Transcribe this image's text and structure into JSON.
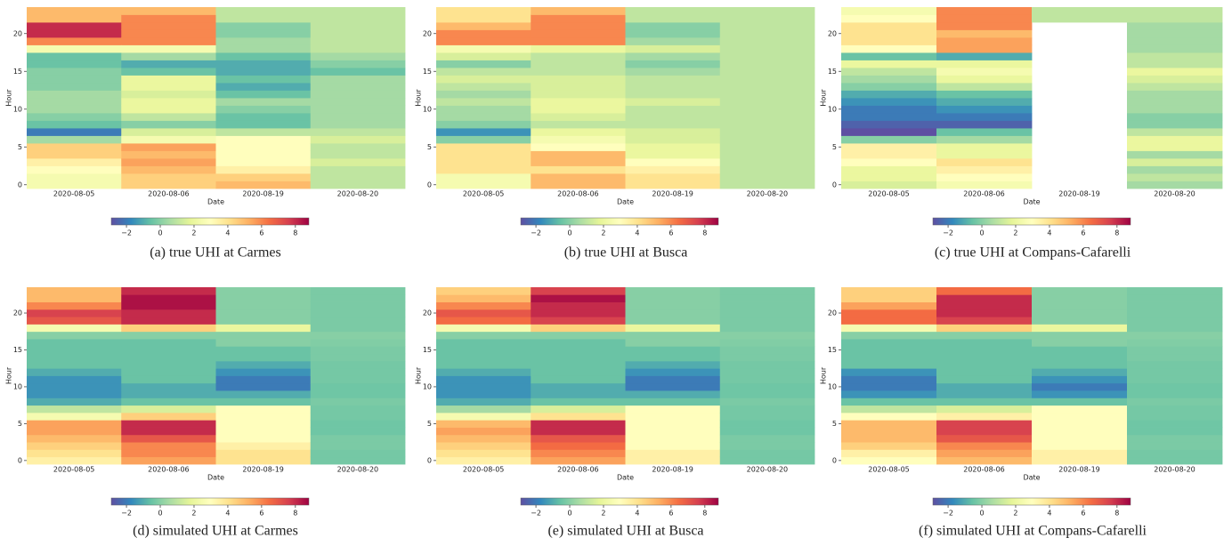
{
  "chart_data": [
    {
      "type": "heatmap",
      "title": "(a) true UHI at Carmes",
      "x_label": "Date",
      "y_label": "Hour",
      "colormap": "Spectral_r",
      "categories": [
        "2020-08-05",
        "2020-08-06",
        "2020-08-19",
        "2020-08-20"
      ],
      "y": [
        0,
        1,
        2,
        3,
        4,
        5,
        6,
        7,
        8,
        9,
        10,
        11,
        12,
        13,
        14,
        15,
        16,
        17,
        18,
        19,
        20,
        21,
        22,
        23
      ],
      "ylim": [
        -0.5,
        23.5
      ],
      "yticks": [
        0,
        5,
        10,
        15,
        20
      ],
      "clim": [
        -2.9,
        8.8
      ],
      "cticks": [
        {
          "value": -2,
          "label": "−2"
        },
        0,
        2,
        4,
        6,
        8
      ],
      "values": [
        [
          2.5,
          2.5,
          3,
          3.5,
          4.5,
          4.5,
          0.5,
          -2,
          -0.5,
          0,
          0.5,
          0.5,
          0.5,
          0,
          0,
          0,
          -0.5,
          -0.5,
          2.5,
          6,
          8,
          8,
          5,
          5
        ],
        [
          4.5,
          4.5,
          5,
          5.5,
          5,
          5.5,
          2.5,
          1.5,
          0,
          1,
          2,
          2,
          1.5,
          2,
          2,
          -0.5,
          -1,
          0.5,
          2.5,
          6,
          6,
          6,
          6,
          5
        ],
        [
          5,
          4.5,
          3.5,
          3,
          3,
          3,
          3,
          1,
          -0.5,
          -0.5,
          0,
          0.5,
          -0.5,
          -1,
          -0.5,
          -1,
          -1,
          -0.5,
          0.5,
          0.5,
          0,
          0,
          1,
          1
        ],
        [
          1,
          1,
          1,
          1.5,
          1,
          1,
          1.5,
          1,
          0.5,
          0.5,
          0.5,
          0.5,
          0.5,
          0.5,
          0.5,
          -0.5,
          0,
          0.5,
          1,
          1,
          1,
          1,
          1,
          1
        ]
      ]
    },
    {
      "type": "heatmap",
      "title": "(b) true UHI at Busca",
      "x_label": "Date",
      "y_label": "Hour",
      "colormap": "Spectral_r",
      "categories": [
        "2020-08-05",
        "2020-08-06",
        "2020-08-19",
        "2020-08-20"
      ],
      "y": [
        0,
        1,
        2,
        3,
        4,
        5,
        6,
        7,
        8,
        9,
        10,
        11,
        12,
        13,
        14,
        15,
        16,
        17,
        18,
        19,
        20,
        21,
        22,
        23
      ],
      "ylim": [
        -0.5,
        23.5
      ],
      "yticks": [
        0,
        5,
        10,
        15,
        20
      ],
      "clim": [
        -2.9,
        8.8
      ],
      "cticks": [
        {
          "value": -2,
          "label": "−2"
        },
        0,
        2,
        4,
        6,
        8
      ],
      "values": [
        [
          2.5,
          2.5,
          4,
          4,
          4,
          4,
          0,
          -1.5,
          0,
          0.5,
          0.5,
          1,
          0.5,
          1,
          1.5,
          1,
          0,
          1.5,
          2.5,
          6,
          6,
          5,
          4,
          4
        ],
        [
          5,
          5,
          4,
          5,
          5,
          3,
          2.5,
          2,
          1,
          1.5,
          2,
          2,
          1.5,
          1.5,
          1.5,
          1,
          1,
          1,
          2,
          6,
          6,
          6,
          6,
          5
        ],
        [
          4,
          4,
          3.5,
          3,
          2,
          2,
          1.5,
          1.5,
          1,
          1,
          1,
          1.5,
          1,
          1,
          1,
          0.5,
          0,
          0.5,
          1.5,
          0.5,
          0,
          0,
          1,
          1
        ],
        [
          1,
          1,
          1,
          1,
          1,
          1,
          1,
          1,
          1,
          1,
          1,
          1,
          1,
          1,
          1,
          1,
          1,
          1,
          1,
          1,
          1,
          1,
          1,
          1
        ]
      ]
    },
    {
      "type": "heatmap",
      "title": "(c) true UHI at Compans-Cafarelli",
      "x_label": "Date",
      "y_label": "Hour",
      "colormap": "Spectral_r",
      "categories": [
        "2020-08-05",
        "2020-08-06",
        "2020-08-19",
        "2020-08-20"
      ],
      "y": [
        0,
        1,
        2,
        3,
        4,
        5,
        6,
        7,
        8,
        9,
        10,
        11,
        12,
        13,
        14,
        15,
        16,
        17,
        18,
        19,
        20,
        21,
        22,
        23
      ],
      "ylim": [
        -0.5,
        23.5
      ],
      "yticks": [
        0,
        5,
        10,
        15,
        20
      ],
      "clim": [
        -2.9,
        8.8
      ],
      "cticks": [
        {
          "value": -2,
          "label": "−2"
        },
        0,
        2,
        4,
        6,
        8
      ],
      "values": [
        [
          1.5,
          2,
          2,
          3,
          3.5,
          3.5,
          0,
          -3,
          -2.5,
          -2,
          -2,
          -1.5,
          -1,
          0,
          0.5,
          1,
          2,
          -0.5,
          3,
          4,
          4,
          4,
          3,
          2.5
        ],
        [
          2.5,
          3,
          3.5,
          4,
          2,
          2,
          0.5,
          -0.5,
          -2.5,
          -2,
          -1.5,
          -1,
          -0.5,
          1,
          2,
          2.5,
          2,
          -1,
          5.5,
          5.5,
          5,
          6,
          6,
          6
        ],
        [
          null,
          null,
          null,
          null,
          null,
          null,
          null,
          null,
          null,
          null,
          null,
          null,
          null,
          null,
          null,
          null,
          null,
          null,
          null,
          null,
          null,
          null,
          1,
          1
        ],
        [
          0.5,
          1,
          0.5,
          1.5,
          0.5,
          2,
          2,
          1,
          0,
          0,
          0.5,
          0.5,
          0.5,
          1,
          1.5,
          2,
          1,
          1,
          0.5,
          0.5,
          0.5,
          0.5,
          1,
          1
        ]
      ]
    },
    {
      "type": "heatmap",
      "title": "(d) simulated UHI at Carmes",
      "x_label": "Date",
      "y_label": "Hour",
      "colormap": "Spectral_r",
      "categories": [
        "2020-08-05",
        "2020-08-06",
        "2020-08-19",
        "2020-08-20"
      ],
      "y": [
        0,
        1,
        2,
        3,
        4,
        5,
        6,
        7,
        8,
        9,
        10,
        11,
        12,
        13,
        14,
        15,
        16,
        17,
        18,
        19,
        20,
        21,
        22,
        23
      ],
      "ylim": [
        -0.5,
        23.5
      ],
      "yticks": [
        0,
        5,
        10,
        15,
        20
      ],
      "clim": [
        -2.9,
        8.8
      ],
      "cticks": [
        {
          "value": -2,
          "label": "−2"
        },
        0,
        2,
        4,
        6,
        8
      ],
      "values": [
        [
          3.5,
          4,
          4.5,
          5,
          5.5,
          5.5,
          2.5,
          1,
          -1,
          -1.5,
          -1.5,
          -1.5,
          -1,
          -0.5,
          -0.5,
          -0.5,
          -0.5,
          0,
          2.5,
          7,
          7.5,
          6,
          5,
          5
        ],
        [
          5.5,
          6,
          6,
          7,
          8,
          8,
          4.5,
          1.5,
          -0.5,
          -1,
          -1,
          -0.5,
          -0.5,
          -0.5,
          -0.5,
          -0.5,
          -0.5,
          0,
          4.5,
          8,
          8,
          8.5,
          8.5,
          8
        ],
        [
          4,
          4,
          3.5,
          3,
          3,
          3,
          3,
          3,
          -0.5,
          -1,
          -2,
          -2,
          -1.5,
          -1,
          -0.5,
          -0.5,
          0,
          0,
          2,
          0,
          0,
          0,
          0,
          0
        ],
        [
          -0.3,
          -0.3,
          -0.2,
          -0.2,
          -0.4,
          -0.4,
          -0.3,
          -0.3,
          -0.2,
          -0.4,
          -0.4,
          -0.3,
          -0.3,
          -0.3,
          -0.2,
          -0.2,
          -0.1,
          0,
          -0.2,
          -0.2,
          -0.2,
          -0.2,
          -0.2,
          -0.2
        ]
      ]
    },
    {
      "type": "heatmap",
      "title": "(e) simulated UHI at Busca",
      "x_label": "Date",
      "y_label": "Hour",
      "colormap": "Spectral_r",
      "categories": [
        "2020-08-05",
        "2020-08-06",
        "2020-08-19",
        "2020-08-20"
      ],
      "y": [
        0,
        1,
        2,
        3,
        4,
        5,
        6,
        7,
        8,
        9,
        10,
        11,
        12,
        13,
        14,
        15,
        16,
        17,
        18,
        19,
        20,
        21,
        22,
        23
      ],
      "ylim": [
        -0.5,
        23.5
      ],
      "yticks": [
        0,
        5,
        10,
        15,
        20
      ],
      "clim": [
        -2.9,
        8.8
      ],
      "cticks": [
        {
          "value": -2,
          "label": "−2"
        },
        0,
        2,
        4,
        6,
        8
      ],
      "values": [
        [
          3.5,
          4,
          4.5,
          5,
          5.5,
          5,
          2.5,
          0.5,
          -1,
          -1.5,
          -1.5,
          -1.5,
          -1,
          -0.5,
          -0.5,
          -0.5,
          -0.5,
          0,
          2.5,
          6.5,
          7,
          6,
          5,
          4.5
        ],
        [
          5.5,
          6,
          6.5,
          7,
          8,
          8,
          4,
          1.5,
          -0.5,
          -1,
          -1,
          -0.5,
          -0.5,
          -0.5,
          -0.5,
          -0.5,
          -0.5,
          0,
          4.5,
          7.5,
          8,
          8,
          8.5,
          7.5
        ],
        [
          3.5,
          3.5,
          3,
          3,
          3,
          3,
          3,
          3,
          -0.5,
          -1,
          -2,
          -2,
          -1.5,
          -1,
          -0.5,
          -0.5,
          0,
          0,
          2,
          0,
          0,
          0,
          0,
          0
        ],
        [
          -0.3,
          -0.3,
          -0.2,
          -0.2,
          -0.4,
          -0.4,
          -0.3,
          -0.3,
          -0.2,
          -0.4,
          -0.4,
          -0.3,
          -0.3,
          -0.3,
          -0.2,
          -0.2,
          -0.1,
          0,
          -0.2,
          -0.2,
          -0.2,
          -0.2,
          -0.2,
          -0.2
        ]
      ]
    },
    {
      "type": "heatmap",
      "title": "(f) simulated UHI at Compans-Cafarelli",
      "x_label": "Date",
      "y_label": "Hour",
      "colormap": "Spectral_r",
      "categories": [
        "2020-08-05",
        "2020-08-06",
        "2020-08-19",
        "2020-08-20"
      ],
      "y": [
        0,
        1,
        2,
        3,
        4,
        5,
        6,
        7,
        8,
        9,
        10,
        11,
        12,
        13,
        14,
        15,
        16,
        17,
        18,
        19,
        20,
        21,
        22,
        23
      ],
      "ylim": [
        -0.5,
        23.5
      ],
      "yticks": [
        0,
        5,
        10,
        15,
        20
      ],
      "clim": [
        -2.9,
        8.8
      ],
      "cticks": [
        {
          "value": -2,
          "label": "−2"
        },
        0,
        2,
        4,
        6,
        8
      ],
      "values": [
        [
          3,
          3.5,
          4.5,
          5,
          5,
          5,
          3,
          1,
          -0.5,
          -1.5,
          -2,
          -2,
          -1.5,
          -0.5,
          -0.5,
          -0.5,
          -0.5,
          0,
          2.5,
          6.5,
          6.5,
          5.5,
          4.5,
          4.5
        ],
        [
          5,
          5.5,
          6,
          7,
          7.5,
          7.5,
          3.5,
          1.5,
          -0.5,
          -1,
          -1,
          -0.5,
          -0.5,
          -0.5,
          -0.5,
          -0.5,
          -0.5,
          0,
          4.5,
          7.5,
          8,
          8,
          8,
          6.5
        ],
        [
          3.5,
          3.5,
          3,
          3,
          3,
          3,
          3,
          3,
          -0.5,
          -1.5,
          -2,
          -1.5,
          -1,
          -0.5,
          -0.5,
          -0.5,
          0,
          0,
          2,
          0,
          0,
          0,
          0,
          0
        ],
        [
          -0.3,
          -0.3,
          -0.2,
          -0.2,
          -0.4,
          -0.4,
          -0.3,
          -0.3,
          -0.2,
          -0.4,
          -0.4,
          -0.3,
          -0.3,
          -0.3,
          -0.2,
          -0.2,
          -0.1,
          0,
          -0.2,
          -0.2,
          -0.2,
          -0.2,
          -0.2,
          -0.2
        ]
      ]
    }
  ]
}
